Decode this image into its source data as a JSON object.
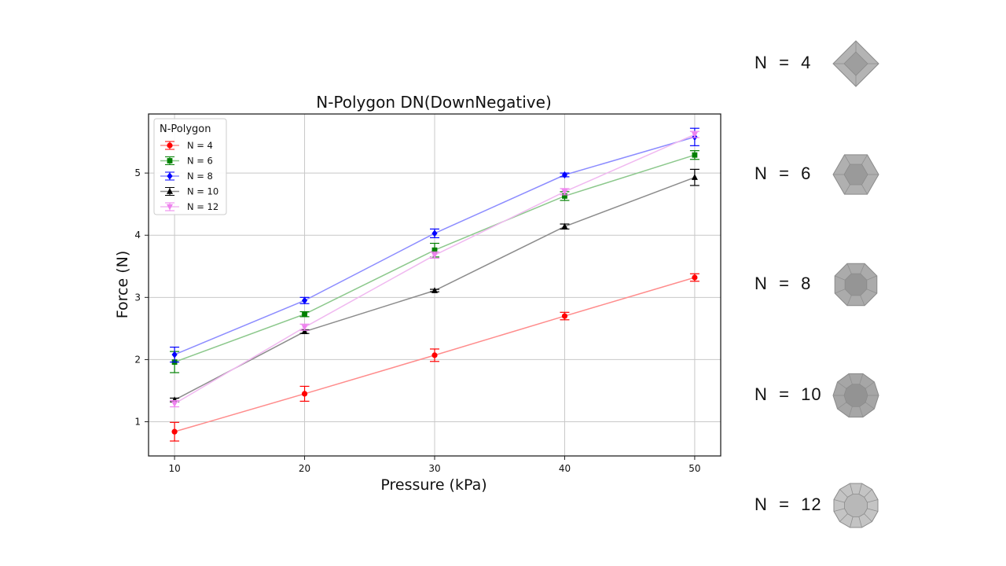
{
  "chart_data": {
    "type": "line",
    "title": "N-Polygon DN(DownNegative)",
    "xlabel": "Pressure (kPa)",
    "ylabel": "Force (N)",
    "x": [
      10,
      20,
      30,
      40,
      50
    ],
    "xlim": [
      8,
      52
    ],
    "ylim": [
      0.45,
      5.95
    ],
    "xticks": [
      10,
      20,
      30,
      40,
      50
    ],
    "yticks": [
      1,
      2,
      3,
      4,
      5
    ],
    "grid": true,
    "legend": {
      "title": "N-Polygon",
      "placement": "top-left"
    },
    "series": [
      {
        "name": "N = 4",
        "color": "#ff0000",
        "line_color": "#ff8c8c",
        "marker": "circle",
        "values": [
          0.84,
          1.45,
          2.07,
          2.7,
          3.32
        ],
        "errors": [
          0.15,
          0.12,
          0.1,
          0.06,
          0.06
        ]
      },
      {
        "name": "N = 6",
        "color": "#008000",
        "line_color": "#8cc88c",
        "marker": "square",
        "values": [
          1.96,
          2.73,
          3.76,
          4.63,
          5.29
        ],
        "errors": [
          0.17,
          0.04,
          0.11,
          0.07,
          0.07
        ]
      },
      {
        "name": "N = 8",
        "color": "#0000ff",
        "line_color": "#8c8cff",
        "marker": "diamond",
        "values": [
          2.08,
          2.95,
          4.03,
          4.97,
          5.58
        ],
        "errors": [
          0.12,
          0.05,
          0.07,
          0.03,
          0.14
        ]
      },
      {
        "name": "N = 10",
        "color": "#000000",
        "line_color": "#8c8c8c",
        "marker": "triangle-up",
        "values": [
          1.35,
          2.45,
          3.11,
          4.14,
          4.93
        ],
        "errors": [
          0.03,
          0.03,
          0.02,
          0.04,
          0.13
        ]
      },
      {
        "name": "N = 12",
        "color": "#ee82ee",
        "line_color": "#f0b8f0",
        "marker": "triangle-down",
        "values": [
          1.29,
          2.52,
          3.68,
          4.7,
          5.62
        ],
        "errors": [
          0.05,
          0.05,
          0.05,
          0.05,
          0.05
        ]
      }
    ]
  },
  "side_panel": {
    "items": [
      {
        "label": "N = 4",
        "icon": "square-polygon-icon"
      },
      {
        "label": "N = 6",
        "icon": "hexagon-polygon-icon"
      },
      {
        "label": "N = 8",
        "icon": "octagon-polygon-icon"
      },
      {
        "label": "N = 10",
        "icon": "decagon-polygon-icon"
      },
      {
        "label": "N = 12",
        "icon": "dodecagon-polygon-icon"
      }
    ]
  }
}
